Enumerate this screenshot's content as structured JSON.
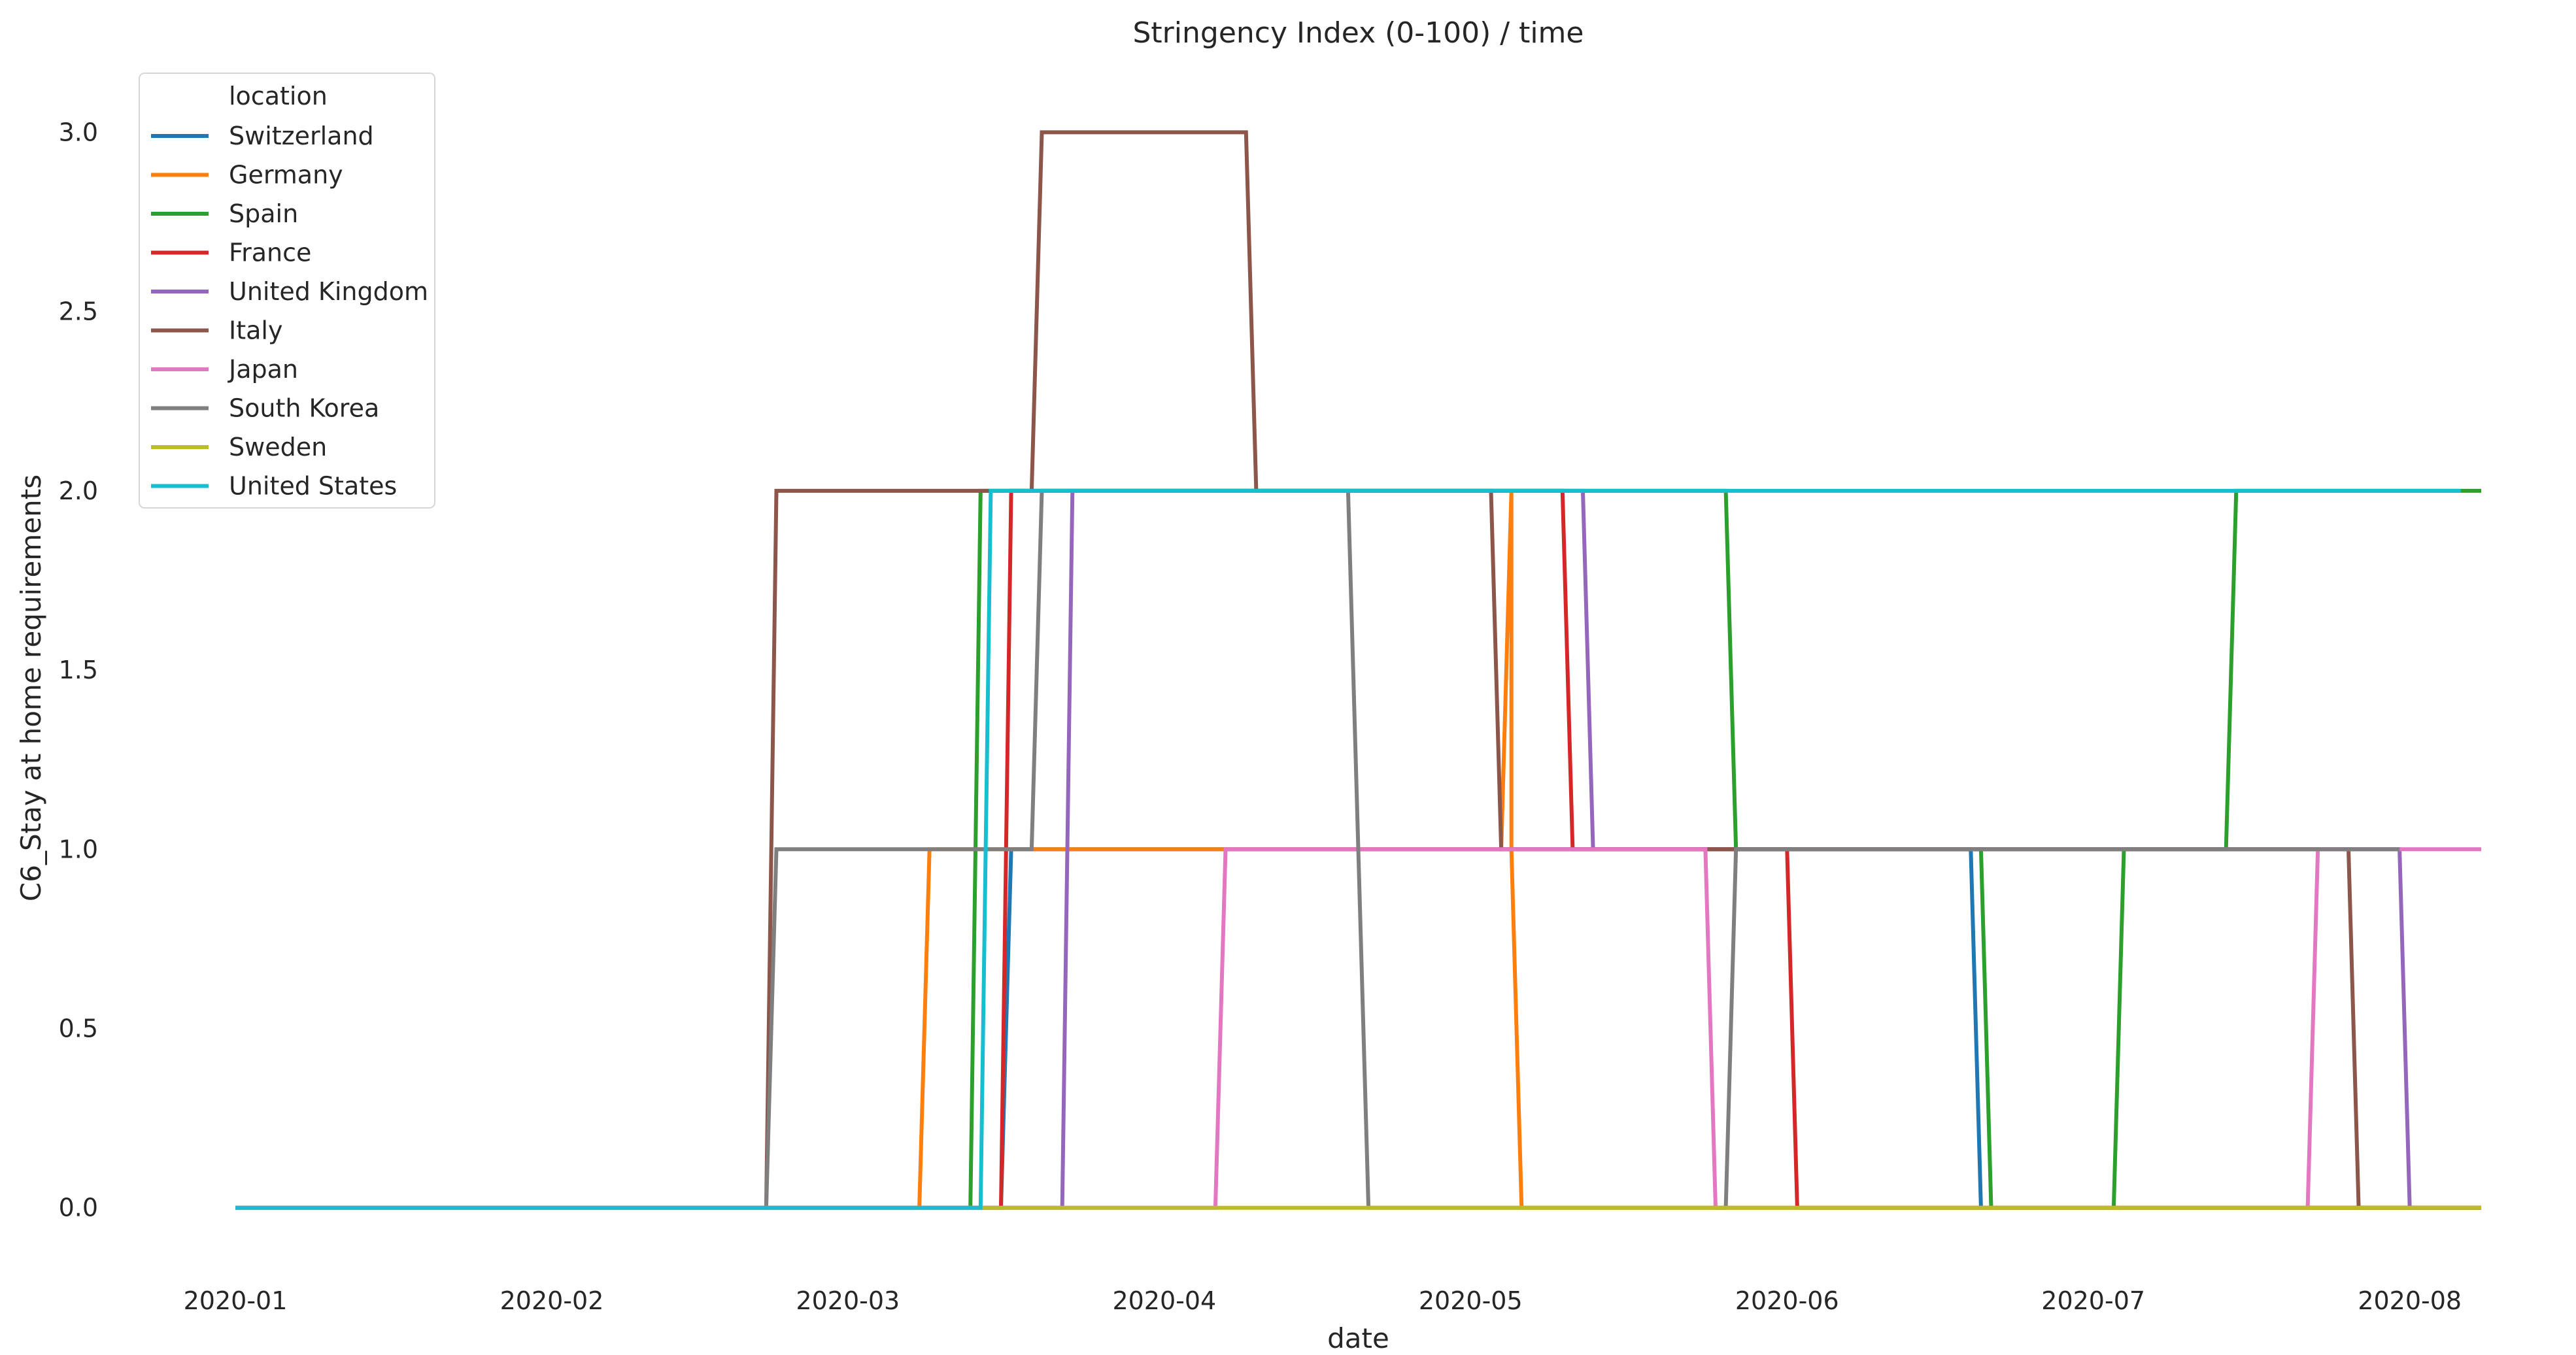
{
  "chart_data": {
    "type": "line",
    "title": "Stringency Index (0-100) / time",
    "xlabel": "date",
    "ylabel": "C6_Stay at home requirements",
    "xlim": [
      "2020-01-01",
      "2020-08-08"
    ],
    "ylim": [
      -0.15,
      3.05
    ],
    "x_ticks": [
      "2020-01-01",
      "2020-02-01",
      "2020-03-01",
      "2020-04-01",
      "2020-05-01",
      "2020-06-01",
      "2020-07-01",
      "2020-08-01"
    ],
    "x_tick_labels": [
      "2020-01",
      "2020-02",
      "2020-03",
      "2020-04",
      "2020-05",
      "2020-06",
      "2020-07",
      "2020-08"
    ],
    "y_ticks": [
      0.0,
      0.5,
      1.0,
      1.5,
      2.0,
      2.5,
      3.0
    ],
    "y_tick_labels": [
      "0.0",
      "0.5",
      "1.0",
      "1.5",
      "2.0",
      "2.5",
      "3.0"
    ],
    "grid": false,
    "legend": {
      "title": "location",
      "position": "top-left"
    },
    "series": [
      {
        "name": "Switzerland",
        "color": "#1f77b4",
        "points": [
          [
            "2020-01-01",
            0
          ],
          [
            "2020-03-16",
            0
          ],
          [
            "2020-03-17",
            1
          ],
          [
            "2020-06-19",
            1
          ],
          [
            "2020-06-20",
            0
          ],
          [
            "2020-08-08",
            0
          ]
        ]
      },
      {
        "name": "Germany",
        "color": "#ff7f0e",
        "points": [
          [
            "2020-01-01",
            0
          ],
          [
            "2020-03-08",
            0
          ],
          [
            "2020-03-09",
            1
          ],
          [
            "2020-05-04",
            1
          ],
          [
            "2020-05-05",
            2
          ],
          [
            "2020-05-05",
            1
          ],
          [
            "2020-05-06",
            0
          ],
          [
            "2020-08-08",
            0
          ]
        ]
      },
      {
        "name": "Spain",
        "color": "#2ca02c",
        "points": [
          [
            "2020-01-01",
            0
          ],
          [
            "2020-03-13",
            0
          ],
          [
            "2020-03-14",
            2
          ],
          [
            "2020-05-26",
            2
          ],
          [
            "2020-05-27",
            1
          ],
          [
            "2020-06-20",
            1
          ],
          [
            "2020-06-21",
            0
          ],
          [
            "2020-07-03",
            0
          ],
          [
            "2020-07-04",
            1
          ],
          [
            "2020-07-14",
            1
          ],
          [
            "2020-07-15",
            2
          ],
          [
            "2020-08-08",
            2
          ]
        ]
      },
      {
        "name": "France",
        "color": "#d62728",
        "points": [
          [
            "2020-01-01",
            0
          ],
          [
            "2020-03-16",
            0
          ],
          [
            "2020-03-17",
            2
          ],
          [
            "2020-05-10",
            2
          ],
          [
            "2020-05-11",
            1
          ],
          [
            "2020-06-01",
            1
          ],
          [
            "2020-06-02",
            0
          ],
          [
            "2020-08-08",
            0
          ]
        ]
      },
      {
        "name": "United Kingdom",
        "color": "#9467bd",
        "points": [
          [
            "2020-01-01",
            0
          ],
          [
            "2020-03-22",
            0
          ],
          [
            "2020-03-23",
            2
          ],
          [
            "2020-05-12",
            2
          ],
          [
            "2020-05-13",
            1
          ],
          [
            "2020-07-31",
            1
          ],
          [
            "2020-08-01",
            0
          ],
          [
            "2020-08-08",
            0
          ]
        ]
      },
      {
        "name": "Italy",
        "color": "#8c564b",
        "points": [
          [
            "2020-01-01",
            0
          ],
          [
            "2020-02-22",
            0
          ],
          [
            "2020-02-23",
            2
          ],
          [
            "2020-03-19",
            2
          ],
          [
            "2020-03-20",
            3
          ],
          [
            "2020-04-09",
            3
          ],
          [
            "2020-04-10",
            2
          ],
          [
            "2020-05-03",
            2
          ],
          [
            "2020-05-04",
            1
          ],
          [
            "2020-07-26",
            1
          ],
          [
            "2020-07-27",
            0
          ],
          [
            "2020-08-08",
            0
          ]
        ]
      },
      {
        "name": "Japan",
        "color": "#e377c2",
        "points": [
          [
            "2020-01-01",
            0
          ],
          [
            "2020-04-06",
            0
          ],
          [
            "2020-04-07",
            1
          ],
          [
            "2020-05-24",
            1
          ],
          [
            "2020-05-25",
            0
          ],
          [
            "2020-07-22",
            0
          ],
          [
            "2020-07-23",
            1
          ],
          [
            "2020-08-08",
            1
          ]
        ]
      },
      {
        "name": "South Korea",
        "color": "#7f7f7f",
        "points": [
          [
            "2020-01-01",
            0
          ],
          [
            "2020-02-22",
            0
          ],
          [
            "2020-02-23",
            1
          ],
          [
            "2020-03-19",
            1
          ],
          [
            "2020-03-20",
            2
          ],
          [
            "2020-04-19",
            2
          ],
          [
            "2020-04-20",
            1
          ],
          [
            "2020-04-21",
            0
          ],
          [
            "2020-05-26",
            0
          ],
          [
            "2020-05-27",
            1
          ],
          [
            "2020-07-31",
            1
          ]
        ]
      },
      {
        "name": "Sweden",
        "color": "#bcbd22",
        "points": [
          [
            "2020-01-01",
            0
          ],
          [
            "2020-08-08",
            0
          ]
        ]
      },
      {
        "name": "United States",
        "color": "#17becf",
        "points": [
          [
            "2020-01-01",
            0
          ],
          [
            "2020-03-14",
            0
          ],
          [
            "2020-03-15",
            2
          ],
          [
            "2020-08-06",
            2
          ]
        ]
      }
    ]
  }
}
